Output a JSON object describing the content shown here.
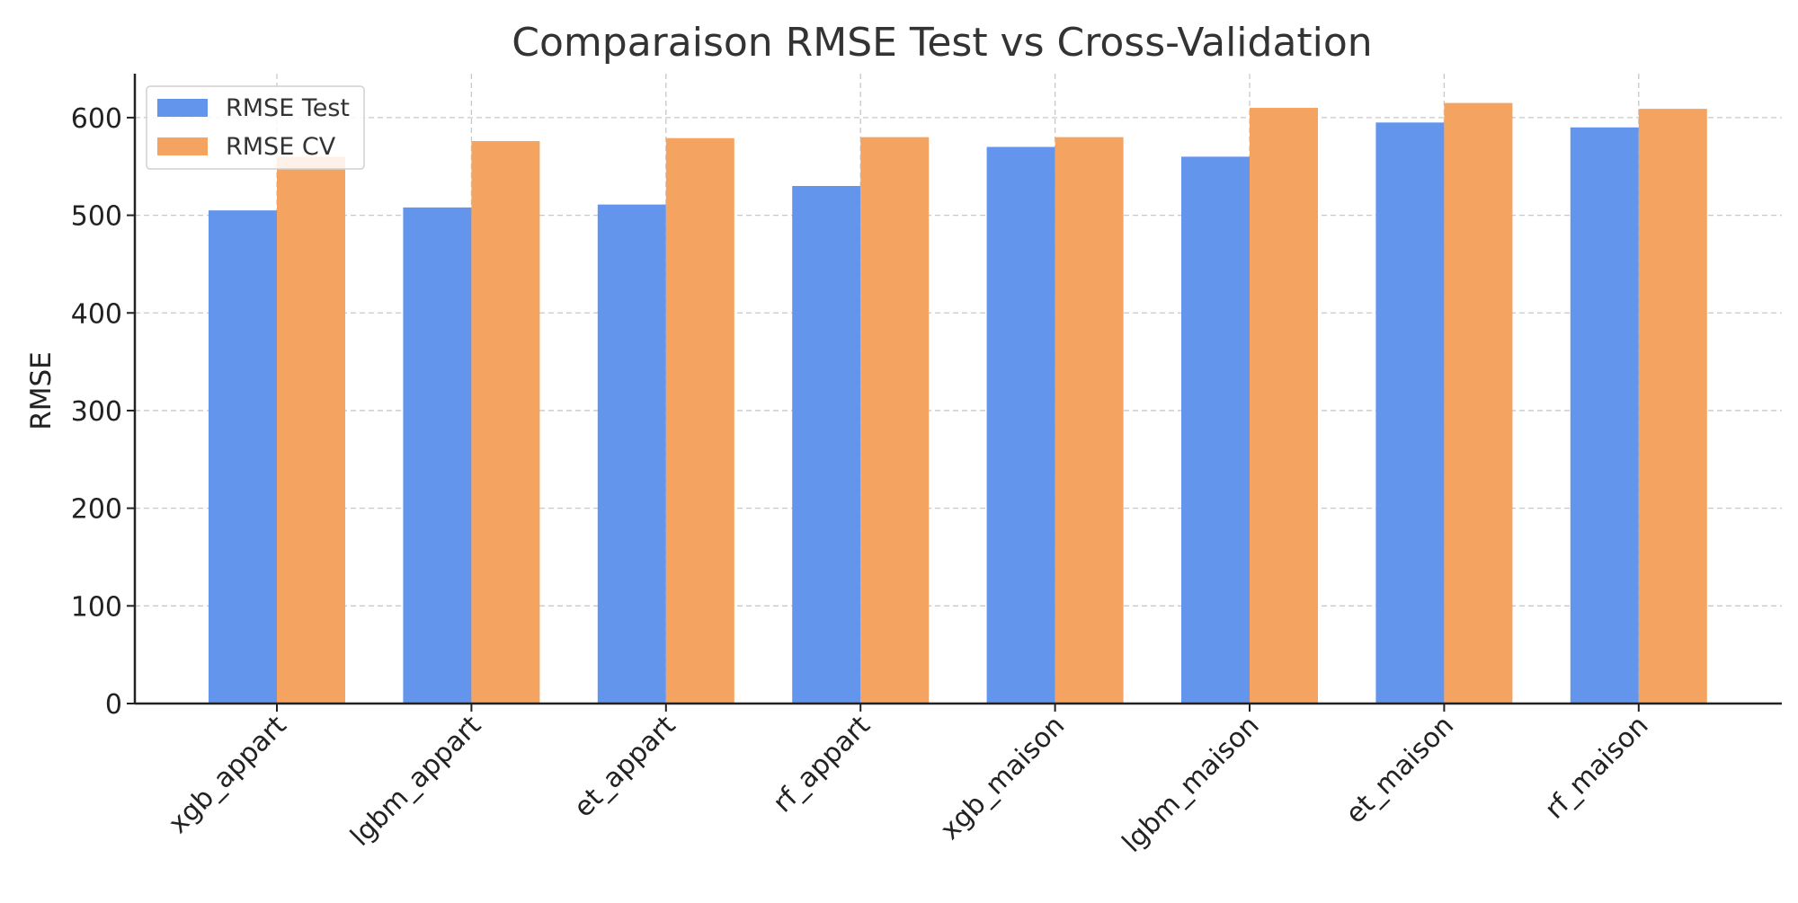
{
  "chart_data": {
    "type": "bar",
    "title": "Comparaison RMSE Test vs Cross-Validation",
    "xlabel": "",
    "ylabel": "RMSE",
    "categories": [
      "xgb_appart",
      "lgbm_appart",
      "et_appart",
      "rf_appart",
      "xgb_maison",
      "lgbm_maison",
      "et_maison",
      "rf_maison"
    ],
    "series": [
      {
        "name": "RMSE Test",
        "color": "#6495ED",
        "values": [
          505,
          508,
          511,
          530,
          570,
          560,
          595,
          590
        ]
      },
      {
        "name": "RMSE CV",
        "color": "#F4A460",
        "values": [
          560,
          576,
          579,
          580,
          580,
          610,
          615,
          609
        ]
      }
    ],
    "ylim": [
      0,
      645
    ],
    "yticks": [
      0,
      100,
      200,
      300,
      400,
      500,
      600
    ],
    "grid": true,
    "legend_position": "top-left"
  }
}
